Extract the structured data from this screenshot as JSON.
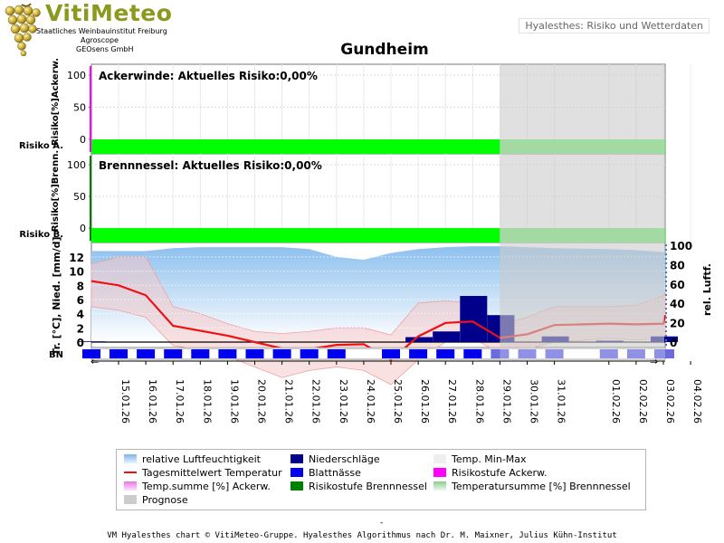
{
  "header": {
    "logo_word": "VitiMeteo",
    "logo_lines": [
      "Staatliches Weinbauinstitut Freiburg",
      "Agroscope",
      "GEOsens GmbH"
    ],
    "badge": "Hyalesthes: Risiko und Wetterdaten"
  },
  "colors": {
    "risk_green": "#00ff00",
    "risk_green_forecast": "#66ee66",
    "temp_line": "#ee1111",
    "precip_bar": "#00008b",
    "leaf_wetness": "#0000ee",
    "humidity_fill": "#8dc0ee",
    "temp_range_fill": "#f5c8c8",
    "forecast_shade": "#cccccc",
    "ackerwinde_risk": "#ff00ff",
    "brennnessel_risk": "#008000"
  },
  "chart_data": {
    "title": "Gundheim",
    "type": "line",
    "dates": [
      "15.01.26",
      "16.01.26",
      "17.01.26",
      "18.01.26",
      "19.01.26",
      "20.01.26",
      "21.01.26",
      "22.01.26",
      "23.01.26",
      "24.01.26",
      "25.01.26",
      "26.01.26",
      "27.01.26",
      "28.01.26",
      "29.01.26",
      "30.01.26",
      "31.01.26",
      "01.02.26",
      "02.02.26",
      "03.02.26",
      "04.02.26"
    ],
    "forecast_from": "29.01.26",
    "panels": [
      {
        "name": "ackerwinde",
        "label": "Ackerwinde: Aktuelles Risiko:0,00%",
        "ylabel": "Risiko[%]Ackerw.",
        "row_label": "Risiko A.",
        "yticks": [
          0,
          50,
          100
        ],
        "ylim": [
          0,
          100
        ],
        "current_risk_percent": 0
      },
      {
        "name": "brennnessel",
        "label": "Brennnessel: Aktuelles Risiko:0,00%",
        "ylabel": "Risiko[%]Brenn.",
        "row_label": "Risiko B.",
        "yticks": [
          0,
          50,
          100
        ],
        "ylim": [
          0,
          100
        ],
        "current_risk_percent": 0
      },
      {
        "name": "weather",
        "ylabel_left": "Tr. [°C], Nied. [mm/d]",
        "ylabel_right": "rel. Luftf.",
        "row_label": "BN",
        "yticks_left": [
          0,
          2,
          4,
          6,
          8,
          10,
          12
        ],
        "yticks_right": [
          0,
          20,
          40,
          60,
          80,
          100
        ],
        "ylim_left": [
          0,
          12.5
        ],
        "ylim_right": [
          0,
          100
        ],
        "series": [
          {
            "name": "Tagesmittelwert Temperatur",
            "x": [
              "14.01.26",
              "15.01.26",
              "16.01.26",
              "17.01.26",
              "18.01.26",
              "19.01.26",
              "20.01.26",
              "21.01.26",
              "22.01.26",
              "23.01.26",
              "24.01.26",
              "25.01.26",
              "26.01.26",
              "27.01.26",
              "28.01.26",
              "29.01.26",
              "30.01.26",
              "31.01.26",
              "01.02.26",
              "02.02.26",
              "03.02.26",
              "04.02.26"
            ],
            "values": [
              8.6,
              8.0,
              6.6,
              2.3,
              1.6,
              0.9,
              0,
              -0.9,
              -1.0,
              -0.4,
              -0.3,
              -2.5,
              0.8,
              2.7,
              2.9,
              0.6,
              1.1,
              2.4,
              2.6,
              2.5,
              2.6,
              3.8
            ]
          },
          {
            "name": "Temp. Min-Max",
            "x": [
              "14.01.26",
              "15.01.26",
              "16.01.26",
              "17.01.26",
              "18.01.26",
              "19.01.26",
              "20.01.26",
              "21.01.26",
              "22.01.26",
              "23.01.26",
              "24.01.26",
              "25.01.26",
              "26.01.26",
              "27.01.26",
              "28.01.26",
              "29.01.26",
              "30.01.26",
              "31.01.26",
              "01.02.26",
              "02.02.26",
              "03.02.26",
              "04.02.26"
            ],
            "min": [
              5.0,
              4.5,
              3.5,
              -0.5,
              -1.0,
              -2.0,
              -3.5,
              -5.0,
              -4.0,
              -3.5,
              -4.0,
              -6.0,
              -2.5,
              0.0,
              0.5,
              -1.5,
              -1.0,
              0.0,
              0.5,
              0.3,
              0.5,
              1.0
            ],
            "max": [
              11.0,
              12.0,
              12.0,
              5.0,
              4.0,
              2.6,
              1.5,
              1.2,
              1.5,
              2.0,
              2.0,
              1.0,
              5.5,
              5.8,
              5.5,
              2.5,
              3.5,
              5.0,
              5.0,
              5.2,
              6.5,
              7.0
            ]
          },
          {
            "name": "relative Luftfeuchtigkeit",
            "x": [
              "14.01.26",
              "15.01.26",
              "16.01.26",
              "17.01.26",
              "18.01.26",
              "19.01.26",
              "20.01.26",
              "21.01.26",
              "22.01.26",
              "23.01.26",
              "24.01.26",
              "25.01.26",
              "26.01.26",
              "27.01.26",
              "28.01.26",
              "29.01.26",
              "30.01.26",
              "31.01.26",
              "01.02.26",
              "02.02.26",
              "03.02.26",
              "04.02.26"
            ],
            "values": [
              94,
              94,
              94,
              97,
              98,
              98,
              98,
              98,
              96,
              88,
              85,
              92,
              96,
              98,
              99,
              99,
              98,
              97,
              96,
              95,
              93,
              92
            ]
          },
          {
            "name": "Niederschläge",
            "x": [
              "14.01.26",
              "26.01.26",
              "27.01.26",
              "28.01.26",
              "29.01.26",
              "31.01.26",
              "01.02.26",
              "03.02.26"
            ],
            "values": [
              0.1,
              0.7,
              1.5,
              6.5,
              3.8,
              0.8,
              0.2,
              0.8
            ]
          }
        ],
        "leaf_wetness_days": [
          "14.01.26",
          "15.01.26",
          "16.01.26",
          "17.01.26",
          "18.01.26",
          "19.01.26",
          "20.01.26",
          "21.01.26",
          "22.01.26",
          "23.01.26",
          "25.01.26",
          "26.01.26",
          "27.01.26",
          "28.01.26",
          "29.01.26",
          "30.01.26",
          "31.01.26",
          "01.02.26",
          "02.02.26",
          "03.02.26",
          "04.02.26"
        ]
      }
    ],
    "legend": [
      {
        "label": "relative Luftfeuchtigkeit",
        "swatch": "humidity"
      },
      {
        "label": "Niederschläge",
        "swatch": "precip"
      },
      {
        "label": "Temp. Min-Max",
        "swatch": "tempminmax"
      },
      {
        "label": "Tagesmittelwert Temperatur",
        "swatch": "templine"
      },
      {
        "label": "Blattnässe",
        "swatch": "leafwet"
      },
      {
        "label": "Risikostufe Ackerw.",
        "swatch": "riskA"
      },
      {
        "label": "Temp.summe [%] Ackerw.",
        "swatch": "tsumA"
      },
      {
        "label": "Risikostufe Brennnessel",
        "swatch": "riskB"
      },
      {
        "label": "Temperatursumme [%] Brennnessel",
        "swatch": "tsumB"
      },
      {
        "label": "Prognose",
        "swatch": "forecast"
      }
    ]
  },
  "footer": {
    "dash": "-",
    "credit": "VM Hyalesthes chart © VitiMeteo-Gruppe. Hyalesthes Algorithmus nach Dr. M. Maixner, Julius Kühn-Institut"
  }
}
